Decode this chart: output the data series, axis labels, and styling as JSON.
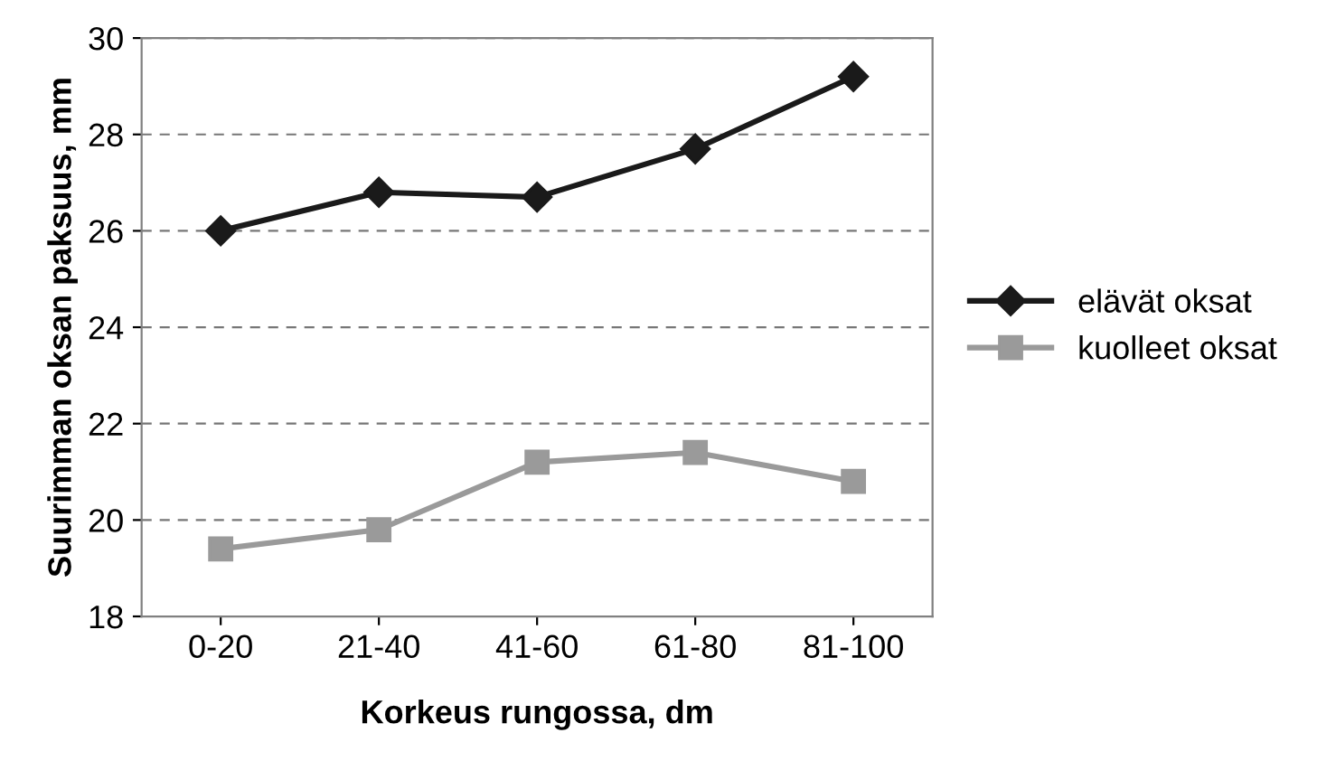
{
  "chart_data": {
    "type": "line",
    "xlabel": "Korkeus rungossa, dm",
    "ylabel": "Suurimman oksan paksuus, mm",
    "categories": [
      "0-20",
      "21-40",
      "41-60",
      "61-80",
      "81-100"
    ],
    "series": [
      {
        "name": "elävät oksat",
        "color": "#1a1a1a",
        "marker": "diamond",
        "values": [
          26.0,
          26.8,
          26.7,
          27.7,
          29.2
        ]
      },
      {
        "name": "kuolleet oksat",
        "color": "#9a9a9a",
        "marker": "square",
        "values": [
          19.4,
          19.8,
          21.2,
          21.4,
          20.8
        ]
      }
    ],
    "ylim": [
      18,
      30
    ],
    "yticks": [
      18,
      20,
      22,
      24,
      26,
      28,
      30
    ],
    "grid": "y",
    "legend": "right",
    "line_style": "solid"
  }
}
